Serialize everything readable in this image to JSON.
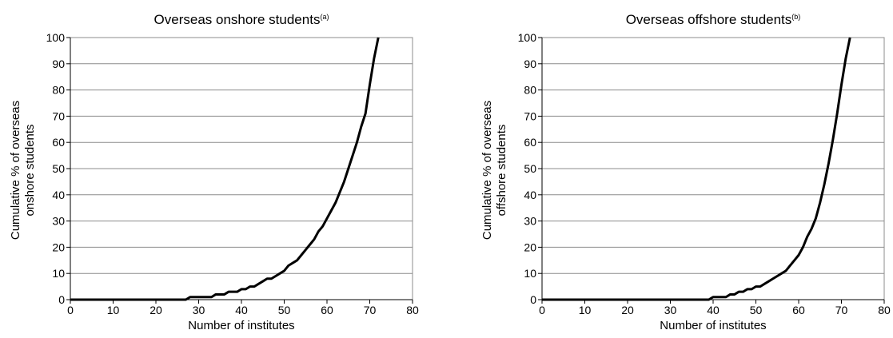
{
  "chart_data": [
    {
      "type": "line",
      "title": "Overseas onshore students",
      "title_superscript": "(a)",
      "xlabel": "Number of institutes",
      "ylabel_lines": [
        "Cumulative % of overseas",
        "onshore students"
      ],
      "xlim": [
        0,
        80
      ],
      "ylim": [
        0,
        100
      ],
      "xticks": [
        0,
        10,
        20,
        30,
        40,
        50,
        60,
        70,
        80
      ],
      "yticks": [
        0,
        10,
        20,
        30,
        40,
        50,
        60,
        70,
        80,
        90,
        100
      ],
      "grid": "horizontal",
      "line_color": "#000000",
      "series": [
        {
          "x": [
            0,
            27,
            28,
            29,
            33,
            34,
            35,
            36,
            37,
            38,
            39,
            40,
            41,
            42,
            43,
            44,
            45,
            46,
            47,
            48,
            49,
            50,
            51,
            52,
            53,
            54,
            55,
            56,
            57,
            58,
            59,
            60,
            61,
            62,
            63,
            64,
            65,
            66,
            67,
            68,
            69,
            70,
            71,
            72
          ],
          "y": [
            0,
            0,
            1,
            1,
            1,
            2,
            2,
            2,
            3,
            3,
            3,
            4,
            4,
            5,
            5,
            6,
            7,
            8,
            8,
            9,
            10,
            11,
            13,
            14,
            15,
            17,
            19,
            21,
            23,
            26,
            28,
            31,
            34,
            37,
            41,
            45,
            50,
            55,
            60,
            66,
            71,
            82,
            92,
            100
          ]
        }
      ]
    },
    {
      "type": "line",
      "title": "Overseas offshore students",
      "title_superscript": "(b)",
      "xlabel": "Number of institutes",
      "ylabel_lines": [
        "Cumulative % of overseas",
        "offshore students"
      ],
      "xlim": [
        0,
        80
      ],
      "ylim": [
        0,
        100
      ],
      "xticks": [
        0,
        10,
        20,
        30,
        40,
        50,
        60,
        70,
        80
      ],
      "yticks": [
        0,
        10,
        20,
        30,
        40,
        50,
        60,
        70,
        80,
        90,
        100
      ],
      "grid": "horizontal",
      "line_color": "#000000",
      "series": [
        {
          "x": [
            0,
            39,
            40,
            43,
            44,
            45,
            46,
            47,
            48,
            49,
            50,
            51,
            52,
            53,
            54,
            55,
            56,
            57,
            58,
            59,
            60,
            61,
            62,
            63,
            64,
            65,
            66,
            67,
            68,
            69,
            70,
            71,
            72
          ],
          "y": [
            0,
            0,
            1,
            1,
            2,
            2,
            3,
            3,
            4,
            4,
            5,
            5,
            6,
            7,
            8,
            9,
            10,
            11,
            13,
            15,
            17,
            20,
            24,
            27,
            31,
            37,
            44,
            52,
            61,
            71,
            82,
            92,
            100
          ]
        }
      ]
    }
  ]
}
